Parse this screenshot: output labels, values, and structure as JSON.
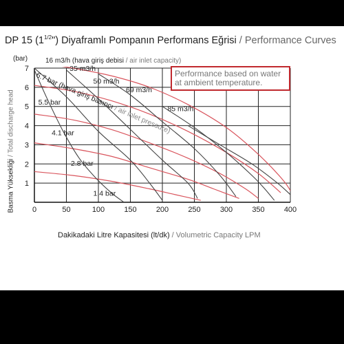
{
  "title": {
    "main": "DP 15 (1",
    "fraction": "1/2",
    "main_end": "\") Diyaframlı Pompanın Performans Eğrisi",
    "separator": " / ",
    "sub": "Performance Curves"
  },
  "note": "Performance based on water at ambient temperature.",
  "air_inlet_label": {
    "main": "16 m3/h (hava giriş debisi",
    "sub": " / air inlet capacity)"
  },
  "ylabel": {
    "main": "Basma Yüksekliği",
    "sub": " / Total discharge head"
  },
  "y_unit": "(bar)",
  "xlabel": {
    "main": "Dakikadaki Litre Kapasitesi (lt/dk)",
    "sub": " / Volumetric Capacity LPM"
  },
  "pressure_label": {
    "main": "6.7 bar (hava giriş basıncı",
    "sub": " / air inlet pressure)"
  },
  "colors": {
    "air_curve": "#d9545c",
    "pressure_curve": "#444444",
    "grid": "#222222",
    "note_border": "#c0282d"
  },
  "chart_data": {
    "type": "line",
    "xlim": [
      0,
      400
    ],
    "ylim": [
      0,
      7
    ],
    "x_ticks": [
      "0",
      "50",
      "100",
      "150",
      "200",
      "250",
      "300",
      "350",
      "400"
    ],
    "y_ticks": [
      "1",
      "2",
      "3",
      "4",
      "5",
      "6",
      "7"
    ],
    "grid": true,
    "air_capacity_curves": [
      {
        "name": "16 m3/h",
        "points": [
          [
            0,
            6.9
          ],
          [
            20,
            5.4
          ],
          [
            45,
            3.7
          ],
          [
            70,
            2.3
          ],
          [
            95,
            1.3
          ],
          [
            120,
            0.5
          ],
          [
            140,
            0.0
          ]
        ]
      },
      {
        "name": "35 m3/h",
        "points": [
          [
            0,
            7.0
          ],
          [
            50,
            5.5
          ],
          [
            100,
            3.7
          ],
          [
            150,
            2.2
          ],
          [
            180,
            1.0
          ],
          [
            200,
            0.1
          ]
        ]
      },
      {
        "name": "50 m3/h",
        "points": [
          [
            50,
            6.9
          ],
          [
            100,
            5.4
          ],
          [
            150,
            3.8
          ],
          [
            200,
            2.2
          ],
          [
            240,
            1.0
          ],
          [
            255,
            0.2
          ]
        ]
      },
      {
        "name": "69 m3/h",
        "points": [
          [
            100,
            6.7
          ],
          [
            150,
            5.6
          ],
          [
            200,
            4.2
          ],
          [
            250,
            2.8
          ],
          [
            290,
            1.4
          ],
          [
            315,
            0.3
          ]
        ]
      },
      {
        "name": "85 m3/h",
        "points": [
          [
            200,
            5.0
          ],
          [
            250,
            3.9
          ],
          [
            300,
            2.6
          ],
          [
            340,
            1.4
          ],
          [
            360,
            0.7
          ],
          [
            375,
            0.1
          ]
        ]
      },
      {
        "name": "",
        "points": [
          [
            240,
            4.0
          ],
          [
            290,
            3.0
          ],
          [
            340,
            2.0
          ],
          [
            380,
            1.0
          ],
          [
            400,
            0.4
          ]
        ]
      }
    ],
    "air_pressure_curves": [
      {
        "name": "6.7 bar",
        "points": [
          [
            0,
            7.3
          ],
          [
            60,
            7.0
          ],
          [
            120,
            6.6
          ],
          [
            180,
            6.0
          ],
          [
            240,
            5.1
          ],
          [
            300,
            3.9
          ],
          [
            350,
            2.5
          ],
          [
            390,
            1.1
          ],
          [
            405,
            0.3
          ]
        ]
      },
      {
        "name": "5.5 bar",
        "points": [
          [
            0,
            6.1
          ],
          [
            60,
            5.8
          ],
          [
            120,
            5.3
          ],
          [
            180,
            4.6
          ],
          [
            240,
            3.7
          ],
          [
            300,
            2.6
          ],
          [
            350,
            1.5
          ],
          [
            385,
            0.5
          ]
        ]
      },
      {
        "name": "4.1 bar",
        "points": [
          [
            0,
            4.6
          ],
          [
            60,
            4.3
          ],
          [
            120,
            3.8
          ],
          [
            180,
            3.1
          ],
          [
            240,
            2.3
          ],
          [
            290,
            1.5
          ],
          [
            330,
            0.7
          ],
          [
            350,
            0.2
          ]
        ]
      },
      {
        "name": "2.8 bar",
        "points": [
          [
            0,
            3.1
          ],
          [
            60,
            2.8
          ],
          [
            120,
            2.4
          ],
          [
            180,
            1.8
          ],
          [
            240,
            1.2
          ],
          [
            280,
            0.7
          ],
          [
            320,
            0.2
          ]
        ]
      },
      {
        "name": "1.4 bar",
        "points": [
          [
            0,
            1.6
          ],
          [
            60,
            1.4
          ],
          [
            120,
            1.1
          ],
          [
            180,
            0.7
          ],
          [
            220,
            0.4
          ],
          [
            260,
            0.1
          ]
        ]
      }
    ],
    "pressure_labels": [
      "6.7 bar",
      "5.5 bar",
      "4.1 bar",
      "2.8 bar",
      "1.4 bar"
    ],
    "air_labels": [
      "35 m3/h",
      "50 m3/h",
      "69 m3/h",
      "85 m3/h"
    ]
  }
}
